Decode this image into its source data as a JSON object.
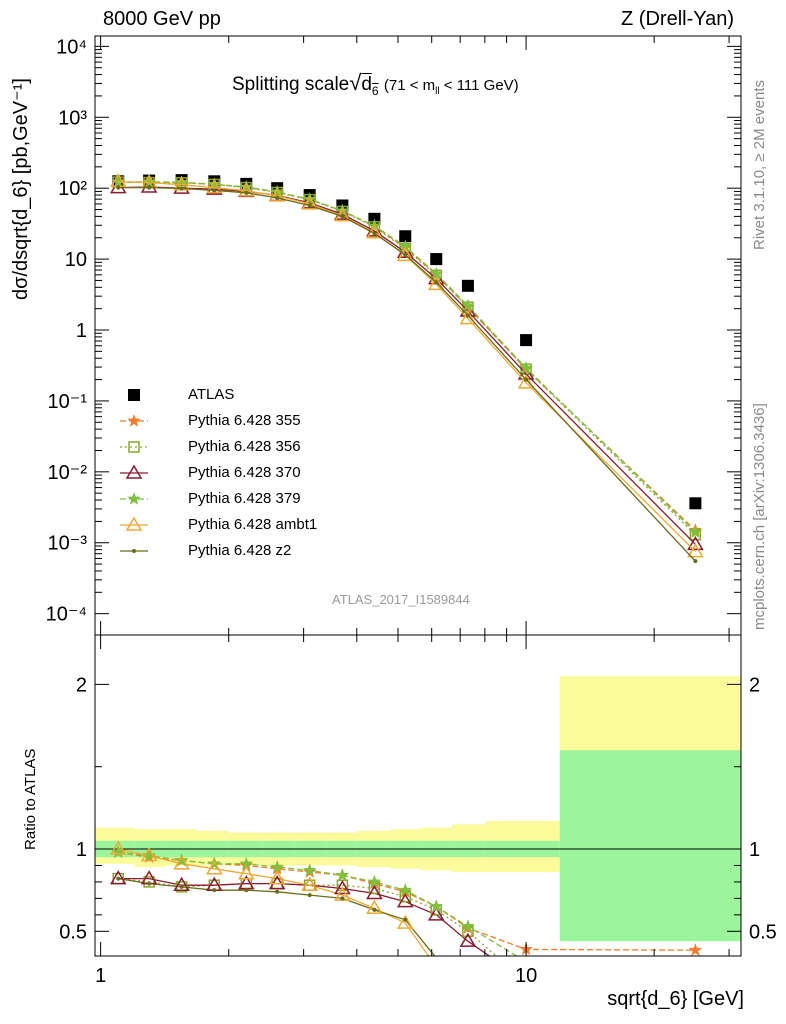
{
  "header": {
    "left": "8000 GeV pp",
    "right": "Z (Drell-Yan)"
  },
  "side_labels": {
    "rivet": "Rivet 3.1.10, ≥ 2M events",
    "mcplots": "mcplots.cern.ch [arXiv:1306.3436]"
  },
  "chart_data": [
    {
      "type": "scatter",
      "title": "Splitting scale √d6 (71 < m_ll < 111 GeV)",
      "title_main": "Splitting scale",
      "title_sub": "(71 < m",
      "title_sub2": "< 111 GeV)",
      "ylabel": "dσ/dsqrt{d_6} [pb,GeV⁻¹]",
      "xlabel": "",
      "xscale": "log",
      "yscale": "log",
      "xlim": [
        0.97,
        32
      ],
      "ylim": [
        5e-05,
        14000
      ],
      "watermark": "ATLAS_2017_I1589844",
      "x_ticks": [
        "1",
        "10"
      ],
      "y_ticks": [
        "10⁻⁴",
        "10⁻³",
        "10⁻²",
        "10⁻¹",
        "1",
        "10",
        "10²",
        "10³",
        "10⁴"
      ],
      "legend_position": "middle-left",
      "series": [
        {
          "name": "ATLAS",
          "color": "#000000",
          "marker": "square",
          "x": [
            1.1,
            1.3,
            1.55,
            1.85,
            2.2,
            2.6,
            3.1,
            3.7,
            4.4,
            5.2,
            6.15,
            7.3,
            10,
            25
          ],
          "y": [
            125,
            128,
            130,
            125,
            115,
            100,
            80,
            57,
            37,
            21,
            10,
            4.2,
            0.72,
            0.0036
          ]
        },
        {
          "name": "Pythia 6.428 355",
          "color": "#f47b2a",
          "marker": "star",
          "dash": "dashed",
          "x": [
            1.1,
            1.3,
            1.55,
            1.85,
            2.2,
            2.6,
            3.1,
            3.7,
            4.4,
            5.2,
            6.15,
            7.3,
            10,
            25
          ],
          "y": [
            122,
            121,
            120,
            113,
            103,
            88,
            69,
            48,
            29,
            14.5,
            6.1,
            2.1,
            0.28,
            0.0015
          ]
        },
        {
          "name": "Pythia 6.428 356",
          "color": "#8aa62a",
          "marker": "open-square",
          "dash": "dotted",
          "x": [
            1.1,
            1.3,
            1.55,
            1.85,
            2.2,
            2.6,
            3.1,
            3.7,
            4.4,
            5.2,
            6.15,
            7.3,
            10,
            25
          ],
          "y": [
            122,
            120,
            119,
            113,
            102,
            87,
            69,
            47,
            28.5,
            14,
            5.9,
            2.1,
            0.28,
            0.0013
          ]
        },
        {
          "name": "Pythia 6.428 370",
          "color": "#8b1a2e",
          "marker": "open-triangle",
          "dash": "solid",
          "x": [
            1.1,
            1.3,
            1.55,
            1.85,
            2.2,
            2.6,
            3.1,
            3.7,
            4.4,
            5.2,
            6.15,
            7.3,
            10,
            25
          ],
          "y": [
            102,
            104,
            100,
            97,
            90,
            79,
            62,
            43,
            25,
            12.5,
            5.3,
            1.85,
            0.24,
            0.00095
          ]
        },
        {
          "name": "Pythia 6.428 379",
          "color": "#7ec13c",
          "marker": "star",
          "dash": "dashed",
          "x": [
            1.1,
            1.3,
            1.55,
            1.85,
            2.2,
            2.6,
            3.1,
            3.7,
            4.4,
            5.2,
            6.15,
            7.3,
            10,
            25
          ],
          "y": [
            122,
            123,
            121,
            114,
            104,
            89,
            70,
            48,
            29.5,
            15,
            6.2,
            2.2,
            0.29,
            0.0014
          ]
        },
        {
          "name": "Pythia 6.428 ambt1",
          "color": "#f0a830",
          "marker": "open-triangle",
          "dash": "solid",
          "x": [
            1.1,
            1.3,
            1.55,
            1.85,
            2.2,
            2.6,
            3.1,
            3.7,
            4.4,
            5.2,
            6.15,
            7.3,
            10,
            25
          ],
          "y": [
            124,
            120,
            112,
            102,
            92,
            78,
            60,
            41,
            23.5,
            11.3,
            4.4,
            1.45,
            0.18,
            0.00075
          ]
        },
        {
          "name": "Pythia 6.428 z2",
          "color": "#6b6b1a",
          "marker": "dot",
          "dash": "solid",
          "x": [
            1.1,
            1.3,
            1.55,
            1.85,
            2.2,
            2.6,
            3.1,
            3.7,
            4.4,
            5.2,
            6.15,
            7.3,
            10,
            25
          ],
          "y": [
            102,
            102,
            99,
            93,
            86,
            73,
            57,
            40,
            23,
            11.5,
            4.7,
            1.6,
            0.2,
            0.00055
          ]
        }
      ]
    },
    {
      "type": "line",
      "ylabel": "Ratio to ATLAS",
      "xlabel": "sqrt{d_6} [GeV]",
      "xscale": "log",
      "xlim": [
        0.97,
        32
      ],
      "ylim": [
        0.35,
        2.3
      ],
      "y_ticks": [
        "0.5",
        "1",
        "2"
      ],
      "x_ticks": [
        "1",
        "10"
      ],
      "bands": {
        "edges": [
          0.97,
          1.2,
          1.42,
          1.69,
          2.0,
          2.4,
          2.85,
          3.4,
          4.0,
          4.8,
          5.65,
          6.7,
          8.0,
          12.0,
          32
        ],
        "stat_lo": [
          0.95,
          0.95,
          0.95,
          0.95,
          0.95,
          0.95,
          0.95,
          0.95,
          0.95,
          0.95,
          0.95,
          0.95,
          0.95,
          0.44,
          0.44
        ],
        "stat_hi": [
          1.05,
          1.05,
          1.05,
          1.05,
          1.05,
          1.05,
          1.05,
          1.05,
          1.05,
          1.05,
          1.05,
          1.05,
          1.05,
          1.6,
          1.6
        ],
        "tot_lo": [
          0.91,
          0.89,
          0.9,
          0.9,
          0.9,
          0.9,
          0.9,
          0.9,
          0.89,
          0.88,
          0.87,
          0.86,
          0.86,
          0.44,
          0.44
        ],
        "tot_hi": [
          1.13,
          1.12,
          1.12,
          1.11,
          1.1,
          1.1,
          1.1,
          1.1,
          1.11,
          1.12,
          1.13,
          1.15,
          1.17,
          2.05,
          2.05
        ],
        "stat_color": "#9cf59c",
        "tot_color": "#fbfb9c"
      },
      "series": [
        {
          "name": "Pythia 6.428 355",
          "color": "#f47b2a",
          "marker": "star",
          "dash": "dashed",
          "x": [
            1.1,
            1.3,
            1.55,
            1.85,
            2.2,
            2.6,
            3.1,
            3.7,
            4.4,
            5.2,
            6.15,
            7.3,
            10,
            25
          ],
          "y": [
            0.98,
            0.95,
            0.93,
            0.91,
            0.9,
            0.88,
            0.86,
            0.84,
            0.79,
            0.74,
            0.65,
            0.52,
            0.39,
            0.385
          ]
        },
        {
          "name": "Pythia 6.428 356",
          "color": "#8aa62a",
          "marker": "open-square",
          "dash": "dotted",
          "x": [
            1.1,
            1.3,
            1.55,
            1.85,
            2.2,
            2.6,
            3.1,
            3.7,
            4.4,
            5.2,
            6.15,
            7.3,
            8.5
          ],
          "y": [
            0.82,
            0.8,
            0.77,
            0.78,
            0.79,
            0.79,
            0.78,
            0.78,
            0.76,
            0.71,
            0.63,
            0.5,
            0.35
          ]
        },
        {
          "name": "Pythia 6.428 370",
          "color": "#8b1a2e",
          "marker": "open-triangle",
          "dash": "solid",
          "x": [
            1.1,
            1.3,
            1.55,
            1.85,
            2.2,
            2.6,
            3.1,
            3.7,
            4.4,
            5.2,
            6.15,
            7.3,
            8.2
          ],
          "y": [
            0.82,
            0.82,
            0.78,
            0.78,
            0.79,
            0.79,
            0.78,
            0.76,
            0.73,
            0.68,
            0.6,
            0.44,
            0.35
          ]
        },
        {
          "name": "Pythia 6.428 379",
          "color": "#7ec13c",
          "marker": "star",
          "dash": "dashed",
          "x": [
            1.1,
            1.3,
            1.55,
            1.85,
            2.2,
            2.6,
            3.1,
            3.7,
            4.4,
            5.2,
            6.15,
            7.3,
            9.5
          ],
          "y": [
            0.98,
            0.96,
            0.93,
            0.91,
            0.91,
            0.89,
            0.87,
            0.84,
            0.8,
            0.75,
            0.65,
            0.53,
            0.35
          ]
        },
        {
          "name": "Pythia 6.428 ambt1",
          "color": "#f0a830",
          "marker": "open-triangle",
          "dash": "solid",
          "x": [
            1.1,
            1.3,
            1.55,
            1.85,
            2.2,
            2.6,
            3.1,
            3.7,
            4.4,
            5.2,
            5.9
          ],
          "y": [
            1.0,
            0.96,
            0.91,
            0.88,
            0.85,
            0.82,
            0.78,
            0.72,
            0.64,
            0.55,
            0.35
          ]
        },
        {
          "name": "Pythia 6.428 z2",
          "color": "#6b6b1a",
          "marker": "dot",
          "dash": "solid",
          "x": [
            1.1,
            1.3,
            1.55,
            1.85,
            2.2,
            2.6,
            3.1,
            3.7,
            4.4,
            5.2,
            6.1
          ],
          "y": [
            0.82,
            0.79,
            0.77,
            0.75,
            0.75,
            0.74,
            0.72,
            0.7,
            0.63,
            0.57,
            0.35
          ]
        }
      ]
    }
  ]
}
